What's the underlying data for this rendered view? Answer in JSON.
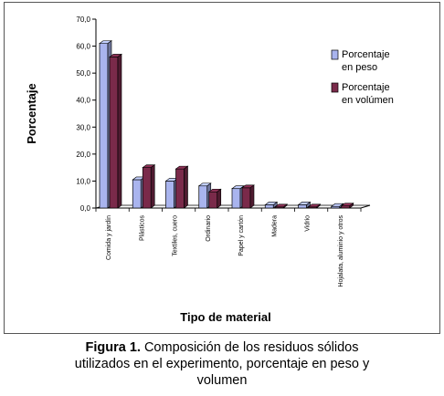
{
  "chart_data": {
    "type": "bar",
    "title": "",
    "xlabel": "Tipo de material",
    "ylabel": "Porcentaje",
    "ylim": [
      0,
      70
    ],
    "y_ticks": [
      "0,0",
      "10,0",
      "20,0",
      "30,0",
      "40,0",
      "50,0",
      "60,0",
      "70,0"
    ],
    "categories": [
      "Comida y jardín",
      "Plásticos",
      "Textiles, cuero",
      "Ordinario",
      "Papel y cartón",
      "Madera",
      "Vidrio",
      "Hojalata, aluminio y otros"
    ],
    "series": [
      {
        "name": "Porcentaje en peso",
        "values": [
          61.0,
          10.5,
          10.0,
          8.2,
          7.2,
          1.2,
          1.2,
          0.6
        ],
        "color": "#a9b4ee"
      },
      {
        "name": "Porcentaje en volúmen",
        "values": [
          56.0,
          15.0,
          14.5,
          6.0,
          7.5,
          0.4,
          0.4,
          0.8
        ],
        "color": "#7a2a4a"
      }
    ],
    "legend_position": "right",
    "grid": false
  },
  "caption": {
    "label": "Figura 1.",
    "text_line1": "Composición de los residuos sólidos",
    "text_line2": "utilizados en el experimento, porcentaje en peso y",
    "text_line3": "volumen"
  }
}
